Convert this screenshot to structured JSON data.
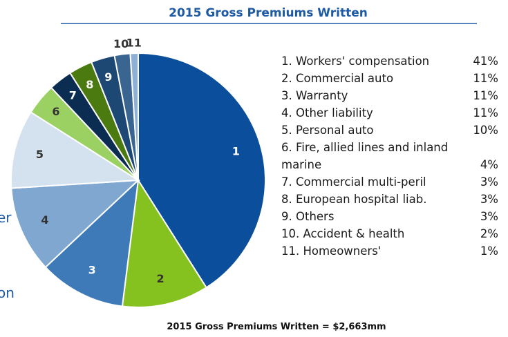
{
  "chart_data": {
    "type": "pie",
    "title": "2015 Gross Premiums Written",
    "categories": [
      "1. Workers' compensation",
      "2. Commercial auto",
      "3. Warranty",
      "4. Other liability",
      "5. Personal auto",
      "6. Fire, allied lines and inland marine",
      "7. Commercial multi-peril",
      "8. European hospital liab.",
      "9. Others",
      "10. Accident & health",
      "11. Homeowners'"
    ],
    "slice_labels": [
      "1",
      "2",
      "3",
      "4",
      "5",
      "6",
      "7",
      "8",
      "9",
      "10",
      "11"
    ],
    "values": [
      41,
      11,
      11,
      11,
      10,
      4,
      3,
      3,
      3,
      2,
      1
    ],
    "value_labels": [
      "41%",
      "11%",
      "11%",
      "11%",
      "10%",
      "4%",
      "3%",
      "3%",
      "3%",
      "2%",
      "1%"
    ],
    "colors": [
      "#0b4f9c",
      "#86c21f",
      "#3f7ab8",
      "#7fa7cf",
      "#d4e2f0",
      "#9bd063",
      "#0c2d52",
      "#4a7a10",
      "#1d4874",
      "#3a6591",
      "#8fb0d6"
    ],
    "footnote": "2015 Gross Premiums Written = $2,663mm"
  },
  "edge_fragments": [
    "er",
    "on"
  ]
}
